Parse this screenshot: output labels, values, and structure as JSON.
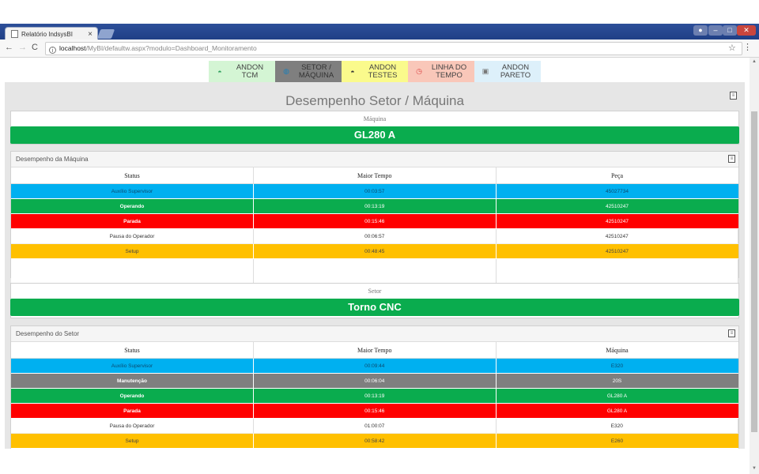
{
  "browser": {
    "tab_title": "Relatório IndsysBI",
    "tab_close": "×",
    "url_host": "localhost",
    "url_path": "/MyBI/defaultw.aspx?modulo=Dashboard_Monitoramento"
  },
  "nav_buttons": [
    {
      "label_1": "ANDON",
      "label_2": "TCM",
      "icon": "andon-lamp-icon"
    },
    {
      "label_1": "SETOR /",
      "label_2": "MÁQUINA",
      "icon": "globe-icon"
    },
    {
      "label_1": "ANDON",
      "label_2": "TESTES",
      "icon": "andon-lamp-icon"
    },
    {
      "label_1": "LINHA DO",
      "label_2": "TEMPO",
      "icon": "clock-icon"
    },
    {
      "label_1": "ANDON",
      "label_2": "PARETO",
      "icon": "image-icon"
    }
  ],
  "title": "Desempenho Setor / Máquina",
  "machine_panel": {
    "caption": "Máquina",
    "value": "GL280 A"
  },
  "machine_table": {
    "heading": "Desempenho da Máquina",
    "columns": [
      "Status",
      "Maior Tempo",
      "Peça"
    ],
    "rows": [
      {
        "status": "Auxílio Supervisor",
        "tempo": "00:03:57",
        "item": "45027734",
        "color": "blue"
      },
      {
        "status": "Operando",
        "tempo": "00:13:19",
        "item": "42510247",
        "color": "green"
      },
      {
        "status": "Parada",
        "tempo": "00:15:46",
        "item": "42510247",
        "color": "red"
      },
      {
        "status": "Pausa do Operador",
        "tempo": "00:06:57",
        "item": "42510247",
        "color": "white"
      },
      {
        "status": "Setup",
        "tempo": "00:48:45",
        "item": "42510247",
        "color": "yellow"
      }
    ]
  },
  "sector_panel": {
    "caption": "Setor",
    "value": "Torno CNC"
  },
  "sector_table": {
    "heading": "Desempenho do Setor",
    "columns": [
      "Status",
      "Maior Tempo",
      "Máquina"
    ],
    "rows": [
      {
        "status": "Auxílio Supervisor",
        "tempo": "00:09:44",
        "item": "E320",
        "color": "blue"
      },
      {
        "status": "Manutenção",
        "tempo": "00:06:04",
        "item": "20S",
        "color": "gray"
      },
      {
        "status": "Operando",
        "tempo": "00:13:19",
        "item": "GL280 A",
        "color": "green"
      },
      {
        "status": "Parada",
        "tempo": "00:15:46",
        "item": "GL280 A",
        "color": "red"
      },
      {
        "status": "Pausa do Operador",
        "tempo": "01:00:07",
        "item": "E320",
        "color": "white"
      },
      {
        "status": "Setup",
        "tempo": "00:58:42",
        "item": "E260",
        "color": "yellow"
      }
    ]
  },
  "colors": {
    "blue": "#00b0f0",
    "green": "#0aac4e",
    "red": "#ff0000",
    "gray": "#7f7f7f",
    "yellow": "#ffc000"
  }
}
